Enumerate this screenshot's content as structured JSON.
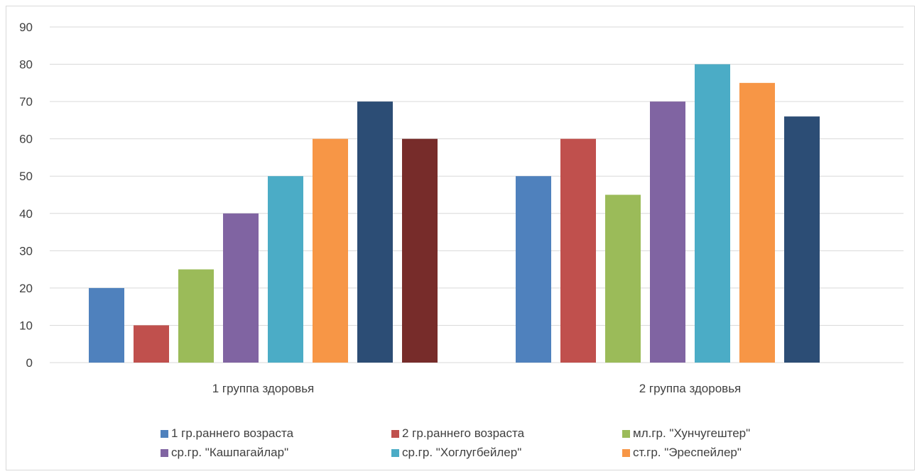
{
  "chart_data": {
    "type": "bar",
    "title": "",
    "xlabel": "",
    "ylabel": "",
    "ylim": [
      0,
      90
    ],
    "yticks": [
      0,
      10,
      20,
      30,
      40,
      50,
      60,
      70,
      80,
      90
    ],
    "grid": true,
    "legend_position": "bottom",
    "categories": [
      "1 группа здоровья",
      "2 группа здоровья"
    ],
    "series": [
      {
        "name": "1 гр.раннего возраста",
        "color": "#4f81bd",
        "values": [
          20,
          50
        ]
      },
      {
        "name": "2 гр.раннего возраста",
        "color": "#c0504d",
        "values": [
          10,
          60
        ]
      },
      {
        "name": "мл.гр. \"Хунчугештер\"",
        "color": "#9bbb59",
        "values": [
          25,
          45
        ]
      },
      {
        "name": "ср.гр. \"Кашпагайлар\"",
        "color": "#8064a2",
        "values": [
          40,
          70
        ]
      },
      {
        "name": "ср.гр. \"Хоглугбейлер\"",
        "color": "#4bacc6",
        "values": [
          50,
          80
        ]
      },
      {
        "name": "ст.гр. \"Эреспейлер\"",
        "color": "#f79646",
        "values": [
          60,
          75
        ]
      },
      {
        "name": "",
        "color": "#2c4d75",
        "values": [
          70,
          66
        ]
      },
      {
        "name": "",
        "color": "#772c2a",
        "values": [
          60,
          null
        ]
      }
    ]
  }
}
